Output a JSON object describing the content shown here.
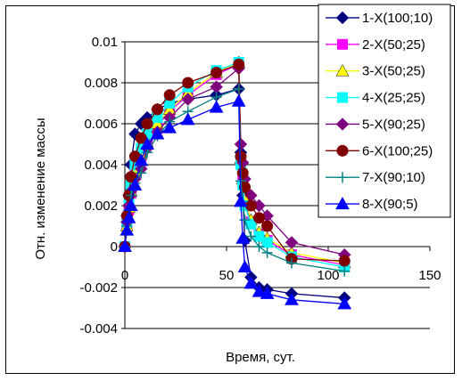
{
  "chart_data": {
    "type": "line",
    "xlabel": "Время, сут.",
    "ylabel": "Отн. изменение массы",
    "xlim": [
      0,
      150
    ],
    "ylim": [
      -0.004,
      0.01
    ],
    "x_ticks": [
      "0",
      "50",
      "100",
      "150"
    ],
    "y_ticks": [
      "-0.004",
      "-0.002",
      "0",
      "0.002",
      "0.004",
      "0.006",
      "0.008",
      "0.01"
    ],
    "grid": "horizontal",
    "legend_position": "top-right",
    "series": [
      {
        "name": "1-X(100;10)",
        "color": "#000080",
        "marker": "diamond",
        "points": [
          [
            0,
            0
          ],
          [
            1,
            0.0015
          ],
          [
            2,
            0.0025
          ],
          [
            3,
            0.004
          ],
          [
            5,
            0.0055
          ],
          [
            8,
            0.006
          ],
          [
            11,
            0.0063
          ],
          [
            16,
            0.0067
          ],
          [
            22,
            0.007
          ],
          [
            31,
            0.0072
          ],
          [
            45,
            0.0074
          ],
          [
            56,
            0.0077
          ],
          [
            57,
            0.0046
          ],
          [
            58,
            0.0025
          ],
          [
            59,
            0.0003
          ],
          [
            62,
            -0.0015
          ],
          [
            66,
            -0.002
          ],
          [
            70,
            -0.0021
          ],
          [
            82,
            -0.0023
          ],
          [
            108,
            -0.0025
          ]
        ]
      },
      {
        "name": "2-X(50;25)",
        "color": "#ff00ff",
        "marker": "square",
        "points": [
          [
            0,
            0
          ],
          [
            1,
            0.001
          ],
          [
            2,
            0.0018
          ],
          [
            3,
            0.0026
          ],
          [
            5,
            0.0036
          ],
          [
            8,
            0.0044
          ],
          [
            11,
            0.005
          ],
          [
            16,
            0.0059
          ],
          [
            22,
            0.0066
          ],
          [
            31,
            0.0074
          ],
          [
            45,
            0.0084
          ],
          [
            56,
            0.0089
          ],
          [
            57,
            0.0042
          ],
          [
            58,
            0.0032
          ],
          [
            59,
            0.0022
          ],
          [
            62,
            0.0012
          ],
          [
            66,
            0.0006
          ],
          [
            70,
            0.0003
          ],
          [
            82,
            -0.0004
          ],
          [
            108,
            -0.0009
          ]
        ]
      },
      {
        "name": "3-X(50;25)",
        "color": "#ffff00",
        "marker": "triangle",
        "points": [
          [
            0,
            0
          ],
          [
            1,
            0.001
          ],
          [
            2,
            0.0019
          ],
          [
            3,
            0.0027
          ],
          [
            5,
            0.0037
          ],
          [
            8,
            0.0045
          ],
          [
            11,
            0.0051
          ],
          [
            16,
            0.006
          ],
          [
            22,
            0.0067
          ],
          [
            31,
            0.0075
          ],
          [
            45,
            0.0085
          ],
          [
            56,
            0.009
          ],
          [
            57,
            0.0043
          ],
          [
            58,
            0.0033
          ],
          [
            59,
            0.0023
          ],
          [
            62,
            0.0013
          ],
          [
            66,
            0.0007
          ],
          [
            70,
            0.0004
          ],
          [
            82,
            -0.0003
          ],
          [
            108,
            -0.0008
          ]
        ]
      },
      {
        "name": "4-X(25;25)",
        "color": "#00ffff",
        "marker": "square",
        "points": [
          [
            0,
            0
          ],
          [
            1,
            0.0012
          ],
          [
            2,
            0.0022
          ],
          [
            3,
            0.003
          ],
          [
            5,
            0.004
          ],
          [
            8,
            0.0048
          ],
          [
            11,
            0.0055
          ],
          [
            16,
            0.0063
          ],
          [
            22,
            0.007
          ],
          [
            31,
            0.0078
          ],
          [
            45,
            0.0086
          ],
          [
            56,
            0.009
          ],
          [
            57,
            0.004
          ],
          [
            58,
            0.003
          ],
          [
            59,
            0.002
          ],
          [
            62,
            0.0011
          ],
          [
            66,
            0.0005
          ],
          [
            70,
            0.0002
          ],
          [
            82,
            -0.0005
          ],
          [
            108,
            -0.001
          ]
        ]
      },
      {
        "name": "5-X(90;25)",
        "color": "#800080",
        "marker": "diamond",
        "points": [
          [
            0,
            0
          ],
          [
            1,
            0.0012
          ],
          [
            2,
            0.002
          ],
          [
            3,
            0.0027
          ],
          [
            5,
            0.0033
          ],
          [
            8,
            0.0038
          ],
          [
            11,
            0.0048
          ],
          [
            16,
            0.0056
          ],
          [
            22,
            0.0063
          ],
          [
            31,
            0.0072
          ],
          [
            45,
            0.0078
          ],
          [
            56,
            0.0087
          ],
          [
            57,
            0.005
          ],
          [
            58,
            0.0041
          ],
          [
            59,
            0.0033
          ],
          [
            62,
            0.0025
          ],
          [
            66,
            0.002
          ],
          [
            70,
            0.0015
          ],
          [
            82,
            0.0002
          ],
          [
            108,
            -0.0004
          ]
        ]
      },
      {
        "name": "6-X(100;25)",
        "color": "#800000",
        "marker": "circle",
        "points": [
          [
            0,
            0
          ],
          [
            1,
            0.0015
          ],
          [
            2,
            0.0025
          ],
          [
            3,
            0.0034
          ],
          [
            5,
            0.0044
          ],
          [
            8,
            0.0053
          ],
          [
            11,
            0.006
          ],
          [
            16,
            0.0067
          ],
          [
            22,
            0.0074
          ],
          [
            31,
            0.008
          ],
          [
            45,
            0.0085
          ],
          [
            56,
            0.0089
          ],
          [
            57,
            0.0044
          ],
          [
            58,
            0.0036
          ],
          [
            59,
            0.0029
          ],
          [
            62,
            0.002
          ],
          [
            66,
            0.0014
          ],
          [
            70,
            0.001
          ],
          [
            82,
            -0.0006
          ],
          [
            108,
            -0.0007
          ]
        ]
      },
      {
        "name": "7-X(90;10)",
        "color": "#008080",
        "marker": "plus",
        "points": [
          [
            0,
            0
          ],
          [
            1,
            0.001
          ],
          [
            2,
            0.0018
          ],
          [
            3,
            0.0025
          ],
          [
            5,
            0.0031
          ],
          [
            8,
            0.0036
          ],
          [
            11,
            0.0046
          ],
          [
            16,
            0.0054
          ],
          [
            22,
            0.0061
          ],
          [
            31,
            0.0066
          ],
          [
            45,
            0.0073
          ],
          [
            56,
            0.0077
          ],
          [
            57,
            0.0032
          ],
          [
            58,
            0.0022
          ],
          [
            59,
            0.0013
          ],
          [
            62,
            0.0005
          ],
          [
            66,
            0.0
          ],
          [
            70,
            -0.0003
          ],
          [
            82,
            -0.0008
          ],
          [
            108,
            -0.0012
          ]
        ]
      },
      {
        "name": "8-X(90;5)",
        "color": "#0000ff",
        "marker": "triangle",
        "points": [
          [
            0,
            0
          ],
          [
            1,
            0.0008
          ],
          [
            2,
            0.0014
          ],
          [
            3,
            0.002
          ],
          [
            5,
            0.003
          ],
          [
            8,
            0.0042
          ],
          [
            11,
            0.005
          ],
          [
            16,
            0.0055
          ],
          [
            22,
            0.0058
          ],
          [
            31,
            0.0062
          ],
          [
            45,
            0.0068
          ],
          [
            56,
            0.0071
          ],
          [
            57,
            0.0022
          ],
          [
            58,
            0.0004
          ],
          [
            59,
            -0.001
          ],
          [
            62,
            -0.0018
          ],
          [
            66,
            -0.0022
          ],
          [
            70,
            -0.0023
          ],
          [
            82,
            -0.0026
          ],
          [
            108,
            -0.0028
          ]
        ]
      }
    ]
  }
}
